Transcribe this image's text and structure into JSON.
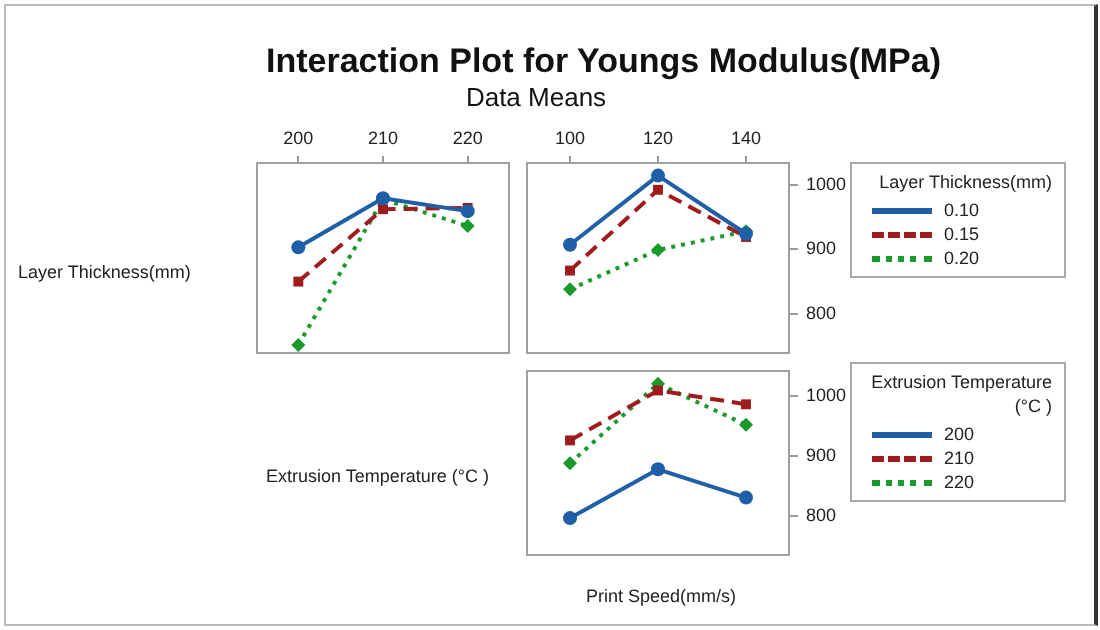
{
  "chart_data": [
    {
      "type": "line",
      "title": "Interaction Plot for Youngs Modulus(MPa)",
      "subtitle": "Data Means",
      "ylabel": "Layer Thickness(mm)",
      "categories": [
        "200",
        "210",
        "220"
      ],
      "ylim": [
        738,
        1035
      ],
      "tick_labels": "x",
      "legend": false,
      "grid": false,
      "series": [
        {
          "color": "#1f5fa8",
          "marker": "circle",
          "line_style": "solid",
          "values": [
            903,
            979,
            959
          ]
        },
        {
          "color": "#a01c1c",
          "marker": "square",
          "line_style": "dashed",
          "values": [
            850,
            962,
            964
          ]
        },
        {
          "color": "#1a9a2a",
          "marker": "diamond",
          "line_style": "dotted",
          "values": [
            752,
            977,
            936
          ]
        }
      ]
    },
    {
      "type": "line",
      "legend_title": "Layer Thickness(mm)",
      "categories": [
        "100",
        "120",
        "140"
      ],
      "ylim": [
        738,
        1035
      ],
      "yticks": [
        800,
        900,
        1000
      ],
      "legend": "right",
      "grid": false,
      "series": [
        {
          "name": "0.10",
          "color": "#1f5fa8",
          "marker": "circle",
          "line_style": "solid",
          "values": [
            907,
            1014,
            924
          ]
        },
        {
          "name": "0.15",
          "color": "#a01c1c",
          "marker": "square",
          "line_style": "dashed",
          "values": [
            867,
            992,
            919
          ]
        },
        {
          "name": "0.20",
          "color": "#1a9a2a",
          "marker": "diamond",
          "line_style": "dotted",
          "values": [
            838,
            899,
            928
          ]
        }
      ]
    },
    {
      "type": "line",
      "ylabel": "Extrusion Temperature (°C )",
      "xlabel": "Print Speed(mm/s)",
      "legend_title": "Extrusion Temperature (°C )",
      "categories": [
        "100",
        "120",
        "140"
      ],
      "ylim": [
        734,
        1043
      ],
      "yticks": [
        800,
        900,
        1000
      ],
      "tick_labels": "y",
      "legend": "right",
      "grid": false,
      "series": [
        {
          "name": "200",
          "color": "#1f5fa8",
          "marker": "circle",
          "line_style": "solid",
          "values": [
            797,
            878,
            831
          ]
        },
        {
          "name": "210",
          "color": "#a01c1c",
          "marker": "square",
          "line_style": "dashed",
          "values": [
            926,
            1009,
            986
          ]
        },
        {
          "name": "220",
          "color": "#1a9a2a",
          "marker": "diamond",
          "line_style": "dotted",
          "values": [
            888,
            1020,
            952
          ]
        }
      ]
    }
  ]
}
